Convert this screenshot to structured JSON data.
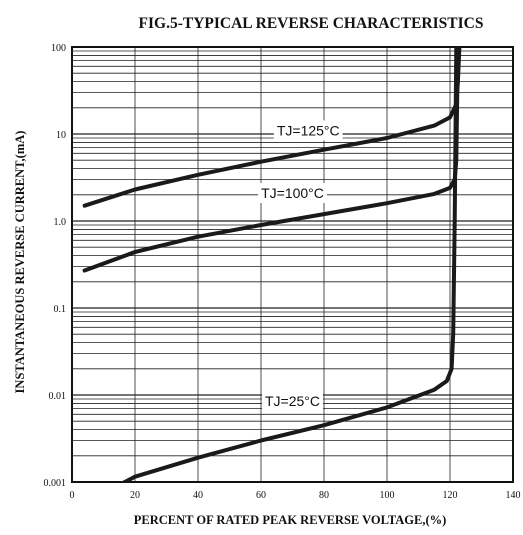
{
  "chart_data": {
    "type": "line",
    "title": "FIG.5-TYPICAL REVERSE CHARACTERISTICS",
    "xlabel": "PERCENT OF RATED PEAK REVERSE VOLTAGE,(%)",
    "ylabel": "INSTANTANEOUS REVERSE CURRENT,(mA)",
    "xlim": [
      0,
      140
    ],
    "ylim": [
      0.001,
      100
    ],
    "yscale": "log",
    "grid": true,
    "xticks": [
      0,
      20,
      40,
      60,
      80,
      100,
      120,
      140
    ],
    "xtick_labels": [
      "0",
      "20",
      "40",
      "60",
      "80",
      "100",
      "120",
      "140"
    ],
    "yticks": [
      0.001,
      0.01,
      0.1,
      1,
      10,
      100
    ],
    "ytick_labels": [
      "0.001",
      "0.01",
      "0.1",
      "1.0",
      "10",
      "100"
    ],
    "series": [
      {
        "name": "TJ=125°C",
        "points": [
          [
            4,
            1.5
          ],
          [
            20,
            2.3
          ],
          [
            40,
            3.4
          ],
          [
            60,
            4.8
          ],
          [
            80,
            6.6
          ],
          [
            100,
            9.0
          ],
          [
            115,
            12.5
          ],
          [
            120,
            15.5
          ],
          [
            122,
            22
          ],
          [
            122.5,
            40
          ],
          [
            123,
            100
          ]
        ],
        "label_at": [
          75,
          11
        ]
      },
      {
        "name": "TJ=100°C",
        "points": [
          [
            4,
            0.27
          ],
          [
            20,
            0.44
          ],
          [
            40,
            0.66
          ],
          [
            60,
            0.9
          ],
          [
            80,
            1.2
          ],
          [
            100,
            1.6
          ],
          [
            115,
            2.05
          ],
          [
            120,
            2.4
          ],
          [
            121.5,
            3.0
          ],
          [
            122,
            5
          ],
          [
            122.5,
            100
          ]
        ],
        "label_at": [
          70,
          2.1
        ]
      },
      {
        "name": "TJ=25°C",
        "points": [
          [
            13,
            0.00085
          ],
          [
            20,
            0.00115
          ],
          [
            40,
            0.0019
          ],
          [
            60,
            0.003
          ],
          [
            80,
            0.0045
          ],
          [
            100,
            0.0072
          ],
          [
            115,
            0.0115
          ],
          [
            119,
            0.0145
          ],
          [
            120.5,
            0.02
          ],
          [
            121,
            0.05
          ],
          [
            121.5,
            1
          ],
          [
            122,
            100
          ]
        ],
        "label_at": [
          70,
          0.0085
        ]
      }
    ]
  }
}
